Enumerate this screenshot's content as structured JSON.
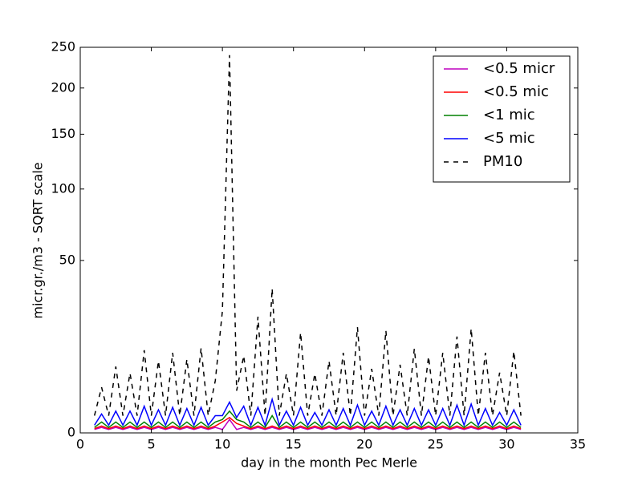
{
  "chart_data": {
    "type": "line",
    "xlabel": "day in the month Pec Merle",
    "ylabel": "micr.gr./m3 - SQRT scale",
    "yscale": "sqrt",
    "xlim": [
      0,
      35
    ],
    "xticks": [
      0,
      5,
      10,
      15,
      20,
      25,
      30,
      35
    ],
    "ylim": [
      0,
      250
    ],
    "yticks": [
      0,
      50,
      100,
      150,
      200,
      250
    ],
    "legend": "upper right",
    "x": [
      1,
      1.5,
      2,
      2.5,
      3,
      3.5,
      4,
      4.5,
      5,
      5.5,
      6,
      6.5,
      7,
      7.5,
      8,
      8.5,
      9,
      9.5,
      10,
      10.5,
      11,
      11.5,
      12,
      12.5,
      13,
      13.5,
      14,
      14.5,
      15,
      15.5,
      16,
      16.5,
      17,
      17.5,
      18,
      18.5,
      19,
      19.5,
      20,
      20.5,
      21,
      21.5,
      22,
      22.5,
      23,
      23.5,
      24,
      24.5,
      25,
      25.5,
      26,
      26.5,
      27,
      27.5,
      28,
      28.5,
      29,
      29.5,
      30,
      30.5,
      31
    ],
    "series": [
      {
        "name": "<0.5 micr",
        "color": "#bf00bf",
        "linestyle": "solid",
        "values": [
          0.02,
          0.05,
          0.02,
          0.05,
          0.02,
          0.05,
          0.02,
          0.05,
          0.02,
          0.05,
          0.02,
          0.05,
          0.02,
          0.05,
          0.02,
          0.05,
          0.02,
          0.05,
          0.02,
          0.3,
          0.02,
          0.05,
          0.02,
          0.05,
          0.02,
          0.05,
          0.02,
          0.05,
          0.02,
          0.05,
          0.02,
          0.05,
          0.02,
          0.05,
          0.02,
          0.05,
          0.02,
          0.05,
          0.02,
          0.05,
          0.02,
          0.05,
          0.02,
          0.05,
          0.02,
          0.05,
          0.02,
          0.05,
          0.02,
          0.05,
          0.02,
          0.05,
          0.02,
          0.05,
          0.02,
          0.05,
          0.02,
          0.05,
          0.02,
          0.05,
          0.02
        ]
      },
      {
        "name": "<0.5 mic",
        "color": "#ff0000",
        "linestyle": "solid",
        "values": [
          0.03,
          0.08,
          0.03,
          0.08,
          0.03,
          0.08,
          0.03,
          0.08,
          0.03,
          0.08,
          0.03,
          0.08,
          0.03,
          0.08,
          0.03,
          0.08,
          0.03,
          0.08,
          0.2,
          0.4,
          0.15,
          0.08,
          0.03,
          0.08,
          0.03,
          0.08,
          0.03,
          0.08,
          0.03,
          0.08,
          0.03,
          0.08,
          0.03,
          0.08,
          0.03,
          0.08,
          0.03,
          0.08,
          0.03,
          0.08,
          0.03,
          0.08,
          0.03,
          0.08,
          0.03,
          0.08,
          0.03,
          0.08,
          0.03,
          0.08,
          0.03,
          0.08,
          0.03,
          0.08,
          0.03,
          0.08,
          0.03,
          0.08,
          0.03,
          0.08,
          0.03
        ]
      },
      {
        "name": "<1 mic",
        "color": "#008000",
        "linestyle": "solid",
        "values": [
          0.05,
          0.2,
          0.05,
          0.2,
          0.05,
          0.2,
          0.05,
          0.2,
          0.05,
          0.2,
          0.05,
          0.2,
          0.05,
          0.2,
          0.05,
          0.2,
          0.05,
          0.2,
          0.3,
          0.8,
          0.3,
          0.2,
          0.05,
          0.2,
          0.05,
          0.5,
          0.05,
          0.2,
          0.05,
          0.2,
          0.05,
          0.2,
          0.05,
          0.2,
          0.05,
          0.2,
          0.05,
          0.2,
          0.05,
          0.2,
          0.05,
          0.2,
          0.05,
          0.2,
          0.05,
          0.2,
          0.05,
          0.2,
          0.05,
          0.2,
          0.05,
          0.2,
          0.05,
          0.2,
          0.05,
          0.2,
          0.05,
          0.2,
          0.05,
          0.2,
          0.05
        ]
      },
      {
        "name": "<5 mic",
        "color": "#0000ff",
        "linestyle": "solid",
        "values": [
          0.1,
          0.6,
          0.1,
          0.8,
          0.1,
          0.8,
          0.1,
          1.2,
          0.1,
          0.9,
          0.1,
          1.1,
          0.1,
          1.0,
          0.1,
          1.1,
          0.1,
          0.5,
          0.5,
          1.6,
          0.4,
          1.2,
          0.1,
          1.1,
          0.1,
          1.9,
          0.1,
          0.8,
          0.1,
          1.1,
          0.1,
          0.7,
          0.1,
          0.9,
          0.1,
          1.0,
          0.1,
          1.3,
          0.1,
          0.8,
          0.1,
          1.2,
          0.1,
          0.9,
          0.1,
          1.0,
          0.1,
          0.9,
          0.1,
          1.0,
          0.1,
          1.3,
          0.1,
          1.4,
          0.1,
          1.0,
          0.1,
          0.7,
          0.1,
          0.9,
          0.1
        ]
      },
      {
        "name": "PM10",
        "color": "#000000",
        "linestyle": "dashed",
        "values": [
          0.5,
          3.5,
          0.5,
          7.4,
          0.5,
          6,
          0.5,
          11.5,
          0.5,
          8.7,
          0.5,
          10.8,
          0.5,
          9.1,
          0.5,
          12.1,
          0.5,
          4.6,
          25,
          240,
          3,
          10,
          0.5,
          22.7,
          0.5,
          35,
          0.5,
          5.9,
          0.5,
          16.9,
          0.5,
          5.9,
          0.5,
          8.7,
          0.5,
          10.8,
          0.5,
          18.8,
          0.5,
          6.9,
          0.5,
          17.6,
          0.5,
          7.8,
          0.5,
          11.9,
          0.5,
          9.8,
          0.5,
          10.8,
          0.5,
          15.6,
          0.5,
          18.3,
          0.5,
          10.8,
          0.5,
          6.1,
          0.5,
          11.2,
          0.5
        ]
      }
    ]
  }
}
